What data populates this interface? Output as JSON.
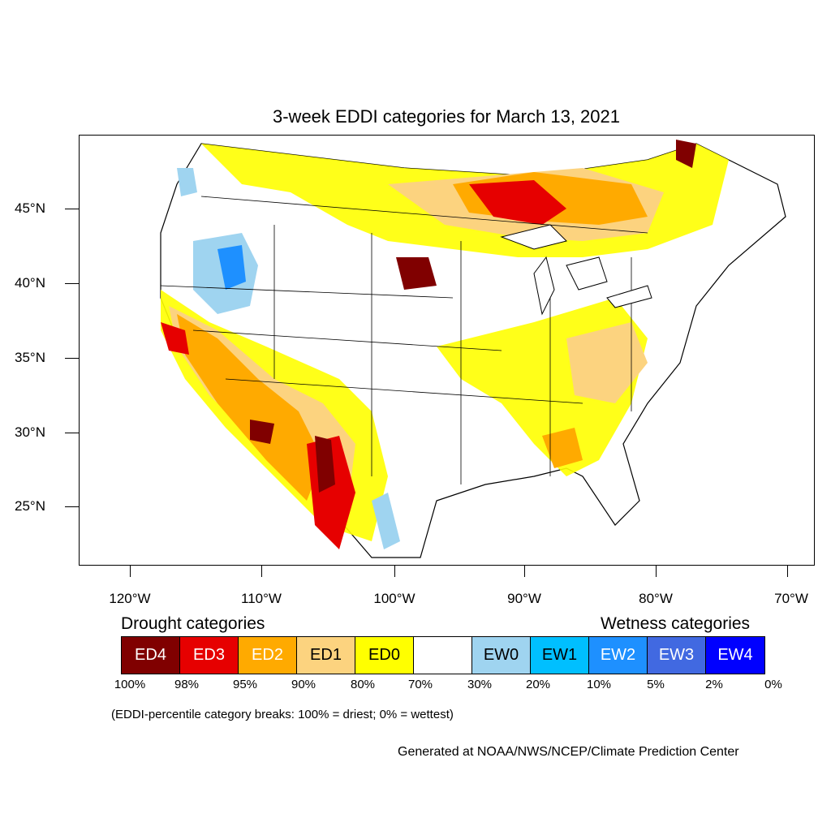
{
  "title": "3-week EDDI categories for March 13, 2021",
  "lat_labels": [
    "45°N",
    "40°N",
    "35°N",
    "30°N",
    "25°N"
  ],
  "lon_labels": [
    "120°W",
    "110°W",
    "100°W",
    "90°W",
    "80°W",
    "70°W"
  ],
  "legend": {
    "drought_heading": "Drought categories",
    "wetness_heading": "Wetness categories",
    "categories": [
      {
        "label": "ED4",
        "color": "#800000",
        "text_color": "#ffffff"
      },
      {
        "label": "ED3",
        "color": "#e60000",
        "text_color": "#ffffff"
      },
      {
        "label": "ED2",
        "color": "#ffaa00",
        "text_color": "#ffffff"
      },
      {
        "label": "ED1",
        "color": "#fcd37f",
        "text_color": "#000000"
      },
      {
        "label": "ED0",
        "color": "#ffff00",
        "text_color": "#000000"
      },
      {
        "label": "",
        "color": "#ffffff",
        "text_color": "#000000"
      },
      {
        "label": "EW0",
        "color": "#9fd4f0",
        "text_color": "#000000"
      },
      {
        "label": "EW1",
        "color": "#00bfff",
        "text_color": "#000000"
      },
      {
        "label": "EW2",
        "color": "#1e90ff",
        "text_color": "#ffffff"
      },
      {
        "label": "EW3",
        "color": "#4169e1",
        "text_color": "#ffffff"
      },
      {
        "label": "EW4",
        "color": "#0000ff",
        "text_color": "#ffffff"
      }
    ],
    "percent_breaks": [
      "100%",
      "98%",
      "95%",
      "90%",
      "80%",
      "70%",
      "30%",
      "20%",
      "10%",
      "5%",
      "2%",
      "0%"
    ]
  },
  "note": "(EDDI-percentile category breaks: 100% = driest; 0% = wettest)",
  "credit": "Generated at NOAA/NWS/NCEP/Climate Prediction Center"
}
